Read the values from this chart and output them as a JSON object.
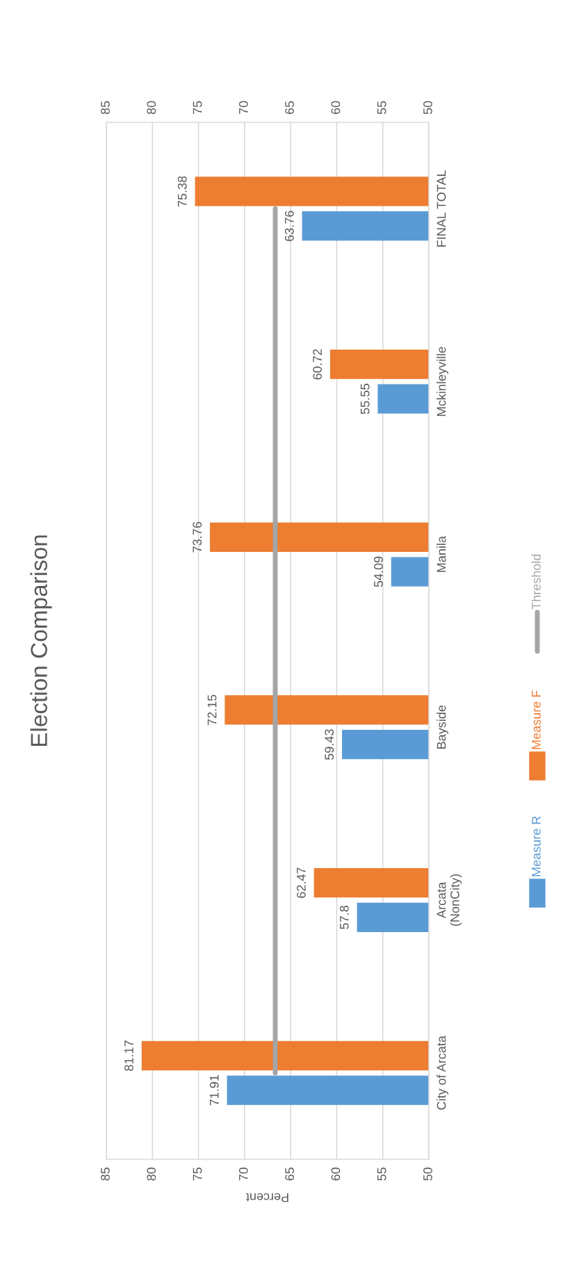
{
  "chart_data": {
    "type": "bar",
    "orientation": "horizontal",
    "title": "Election Comparison",
    "xlabel": "Percent",
    "categories": [
      "FINAL TOTAL",
      "Mckinleyville",
      "Manila",
      "Bayside",
      "Arcata\n(NonCity)",
      "City of Arcata"
    ],
    "series": [
      {
        "name": "Measure R",
        "color": "#5b9bd5",
        "values": [
          63.76,
          55.55,
          54.09,
          59.43,
          57.8,
          71.91
        ],
        "value_labels": [
          "63.76",
          "55.55",
          "54.09",
          "59.43",
          "57.8",
          "71.91"
        ]
      },
      {
        "name": "Measure F",
        "color": "#ed7d31",
        "values": [
          75.38,
          60.72,
          73.76,
          72.15,
          62.47,
          81.17
        ],
        "value_labels": [
          "75.38",
          "60.72",
          "73.76",
          "72.15",
          "62.47",
          "81.17"
        ]
      },
      {
        "name": "Threshold",
        "type": "line",
        "color": "#a5a5a5",
        "values": [
          66.67,
          66.67,
          66.67,
          66.67,
          66.67,
          66.67
        ]
      }
    ],
    "xlim": [
      85,
      50
    ],
    "xticks": [
      85,
      80,
      75,
      70,
      65,
      60,
      55,
      50
    ],
    "x2lim": [
      85,
      50
    ],
    "x2ticks": [
      85,
      80,
      75,
      70,
      65,
      60,
      55,
      50
    ],
    "grid": "x",
    "legend": "right"
  }
}
